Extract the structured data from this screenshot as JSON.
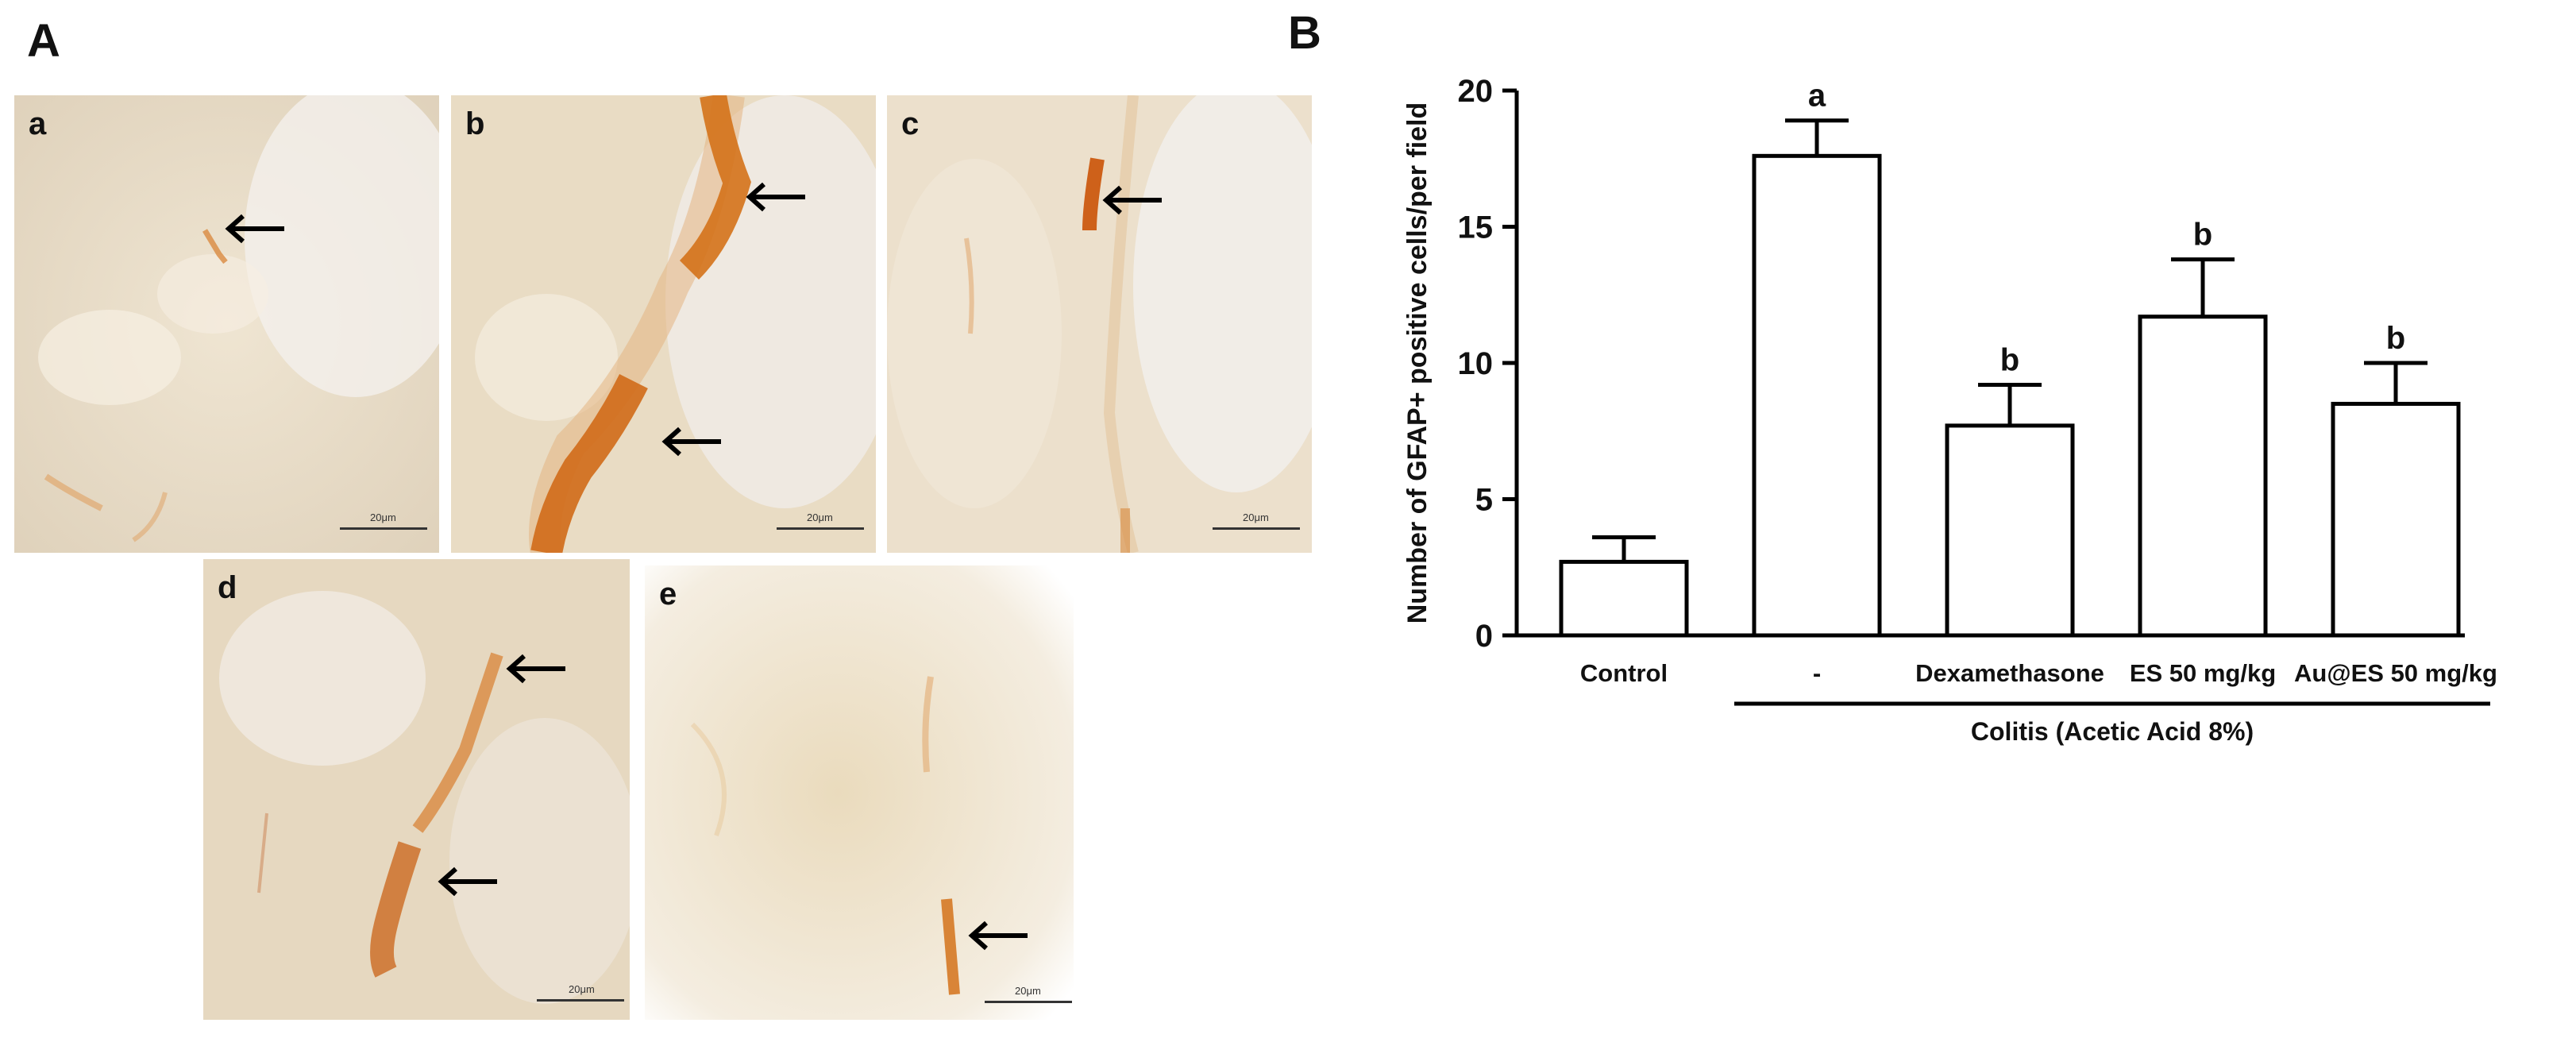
{
  "figure": {
    "panel_a_letter": "A",
    "panel_b_letter": "B",
    "micrographs": [
      {
        "letter": "a",
        "scale": "20μm"
      },
      {
        "letter": "b",
        "scale": "20μm"
      },
      {
        "letter": "c",
        "scale": "20μm"
      },
      {
        "letter": "d",
        "scale": "20μm"
      },
      {
        "letter": "e",
        "scale": "20μm"
      }
    ]
  },
  "chart_data": {
    "type": "bar",
    "ylabel": "Number of GFAP+ positive cells/per field",
    "ylim": [
      0,
      20
    ],
    "yticks": [
      "0",
      "5",
      "10",
      "15",
      "20"
    ],
    "categories": [
      "Control",
      "-",
      "Dexamethasone",
      "ES 50 mg/kg",
      "Au@ES 50 mg/kg"
    ],
    "values": [
      2.7,
      17.6,
      7.7,
      11.7,
      8.5
    ],
    "errors": [
      0.9,
      1.3,
      1.5,
      2.1,
      1.5
    ],
    "annotations": [
      "",
      "a",
      "b",
      "b",
      "b"
    ],
    "group_label": "Colitis (Acetic Acid 8%)",
    "bar_fill": "#ffffff",
    "bar_stroke": "#000000"
  }
}
